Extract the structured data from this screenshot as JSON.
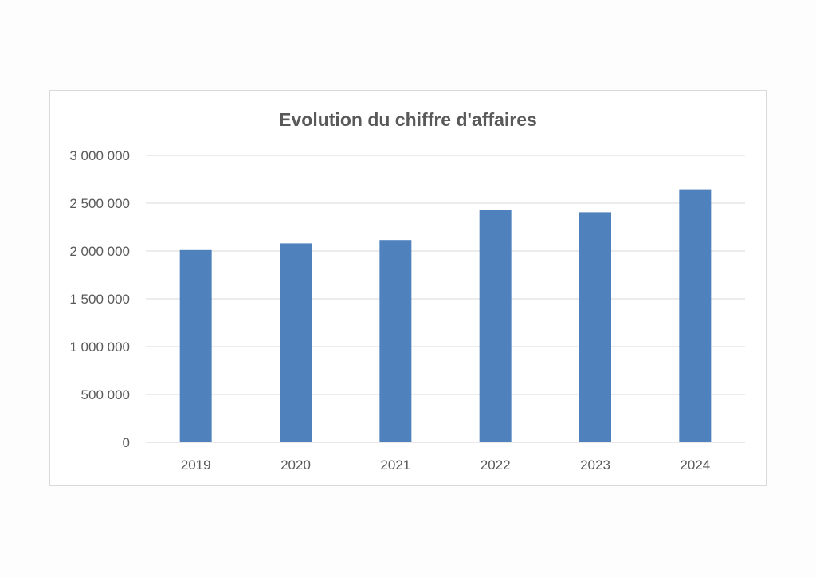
{
  "chart_data": {
    "type": "bar",
    "title": "Evolution du chiffre d'affaires",
    "xlabel": "",
    "ylabel": "",
    "categories": [
      "2019",
      "2020",
      "2021",
      "2022",
      "2023",
      "2024"
    ],
    "values": [
      2010000,
      2080000,
      2115000,
      2430000,
      2405000,
      2645000
    ],
    "ylim": [
      0,
      3000000
    ],
    "yticks": [
      0,
      500000,
      1000000,
      1500000,
      2000000,
      2500000,
      3000000
    ],
    "ytick_labels": [
      "0",
      "500 000",
      "1 000 000",
      "1 500 000",
      "2 000 000",
      "2 500 000",
      "3 000 000"
    ],
    "grid": true,
    "legend": "none",
    "bar_color": "#4f81bd"
  }
}
